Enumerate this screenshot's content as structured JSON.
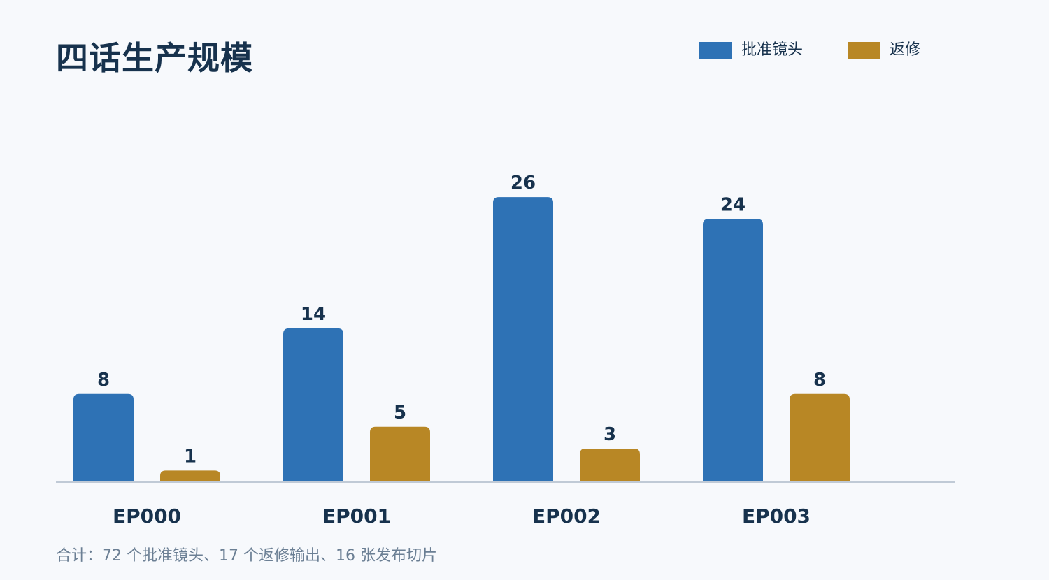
{
  "title": "四话生产规模",
  "legend": [
    {
      "name": "批准镜头",
      "color": "#2e72b5"
    },
    {
      "name": "返修",
      "color": "#b88725"
    }
  ],
  "footnote": "合计：72 个批准镜头、17 个返修输出、16 张发布切片",
  "chart_data": {
    "type": "bar",
    "categories": [
      "EP000",
      "EP001",
      "EP002",
      "EP003"
    ],
    "series": [
      {
        "name": "批准镜头",
        "color": "#2e72b5",
        "values": [
          8,
          14,
          26,
          24
        ]
      },
      {
        "name": "返修",
        "color": "#b88725",
        "values": [
          1,
          5,
          3,
          8
        ]
      }
    ],
    "title": "四话生产规模",
    "xlabel": "",
    "ylabel": "",
    "ylim": [
      0,
      30
    ],
    "grid": false,
    "legend_position": "top-right",
    "axis_color": "#c0cad6"
  }
}
